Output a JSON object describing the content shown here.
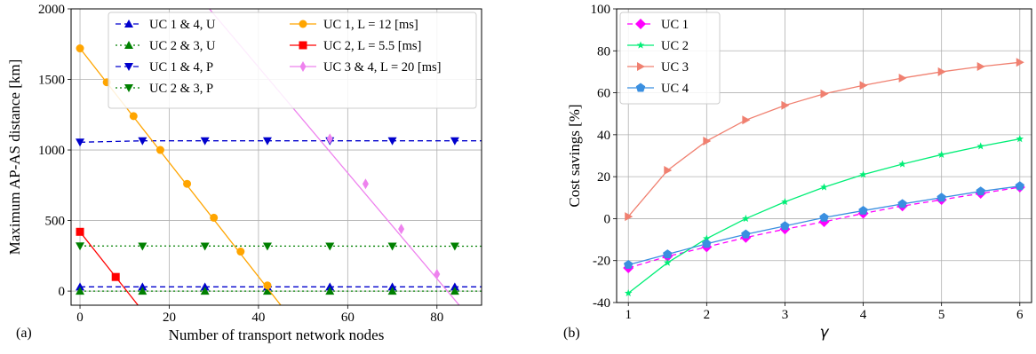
{
  "chart_data": [
    {
      "panel_label": "(a)",
      "type": "line",
      "xlabel": "Number of transport network nodes",
      "ylabel": "Maximum AP-AS distance [km]",
      "xlim": [
        -2,
        90
      ],
      "ylim": [
        -100,
        2000
      ],
      "xticks": [
        0,
        20,
        40,
        60,
        80
      ],
      "yticks": [
        0,
        500,
        1000,
        1500,
        2000
      ],
      "grid": true,
      "legend_placement": "top-right",
      "legend_columns": 2,
      "series": [
        {
          "name": "UC 1 & 4, U",
          "color": "#0000cd",
          "dash": "6,4",
          "marker": "triangle-up",
          "x": [
            0,
            14,
            28,
            42,
            56,
            70,
            84
          ],
          "y": [
            30,
            30,
            30,
            30,
            30,
            30,
            30
          ],
          "line_x": [
            0,
            90
          ],
          "line_y": [
            30,
            30
          ]
        },
        {
          "name": "UC 2 & 3, U",
          "color": "#008000",
          "dash": "2,3",
          "marker": "triangle-up",
          "x": [
            0,
            14,
            28,
            42,
            56,
            70,
            84
          ],
          "y": [
            0,
            0,
            0,
            0,
            0,
            0,
            0
          ],
          "line_x": [
            0,
            90
          ],
          "line_y": [
            0,
            0
          ]
        },
        {
          "name": "UC 1 & 4, P",
          "color": "#0000cd",
          "dash": "6,4",
          "marker": "triangle-down",
          "x": [
            0,
            14,
            28,
            42,
            56,
            70,
            84
          ],
          "y": [
            1055,
            1065,
            1065,
            1065,
            1065,
            1065,
            1065
          ],
          "line_x": [
            0,
            14,
            90
          ],
          "line_y": [
            1055,
            1065,
            1065
          ]
        },
        {
          "name": "UC 2 & 3, P",
          "color": "#008000",
          "dash": "2,3",
          "marker": "triangle-down",
          "x": [
            0,
            14,
            28,
            42,
            56,
            70,
            84
          ],
          "y": [
            320,
            318,
            318,
            318,
            318,
            318,
            318
          ],
          "line_x": [
            0,
            90
          ],
          "line_y": [
            320,
            318
          ]
        },
        {
          "name": "UC 1, L = 12 [ms]",
          "color": "#ffa500",
          "dash": "",
          "marker": "circle",
          "x": [
            0,
            6,
            12,
            18,
            24,
            30,
            36,
            42
          ],
          "y": [
            1720,
            1480,
            1240,
            1000,
            760,
            520,
            280,
            40
          ],
          "line_x": [
            0,
            45
          ],
          "line_y": [
            1720,
            -100
          ]
        },
        {
          "name": "UC 2, L = 5.5 [ms]",
          "color": "#ff0000",
          "dash": "",
          "marker": "square",
          "x": [
            0,
            8
          ],
          "y": [
            420,
            100
          ],
          "line_x": [
            0,
            13
          ],
          "line_y": [
            420,
            -100
          ]
        },
        {
          "name": "UC 3 & 4, L = 20 [ms]",
          "color": "#ee82ee",
          "dash": "",
          "marker": "thin-diamond",
          "x": [
            56,
            64,
            72,
            80
          ],
          "y": [
            1080,
            760,
            440,
            120
          ],
          "line_x": [
            29,
            85
          ],
          "line_y": [
            2000,
            -100
          ]
        }
      ]
    },
    {
      "panel_label": "(b)",
      "type": "line",
      "xlabel": "γ",
      "ylabel": "Cost savings [%]",
      "xlim": [
        0.85,
        6.15
      ],
      "ylim": [
        -40,
        100
      ],
      "xticks": [
        1,
        2,
        3,
        4,
        5,
        6
      ],
      "yticks": [
        -40,
        -20,
        0,
        20,
        40,
        60,
        80,
        100
      ],
      "grid": true,
      "legend_placement": "top-left",
      "legend_columns": 1,
      "x": [
        1,
        1.5,
        2,
        2.5,
        3,
        3.5,
        4,
        4.5,
        5,
        5.5,
        6
      ],
      "series": [
        {
          "name": "UC 1",
          "color": "#ff00ff",
          "dash": "6,4",
          "marker": "diamond",
          "values": [
            -23.5,
            -18,
            -13.5,
            -9,
            -5,
            -1.5,
            2.5,
            6,
            9,
            12,
            15
          ]
        },
        {
          "name": "UC 2",
          "color": "#00ee76",
          "dash": "",
          "marker": "star",
          "values": [
            -35.5,
            -21,
            -9.5,
            0,
            8,
            15,
            21,
            26,
            30.5,
            34.5,
            38
          ]
        },
        {
          "name": "UC 3",
          "color": "#f08070",
          "dash": "",
          "marker": "triangle-right",
          "values": [
            1,
            23,
            37,
            47,
            54,
            59.5,
            63.5,
            67,
            70,
            72.5,
            74.5
          ]
        },
        {
          "name": "UC 4",
          "color": "#3a8fe0",
          "dash": "",
          "marker": "pentagon",
          "values": [
            -22,
            -17,
            -12,
            -7.5,
            -3.5,
            0.5,
            3.8,
            7,
            10,
            13,
            15.5
          ]
        }
      ]
    }
  ]
}
